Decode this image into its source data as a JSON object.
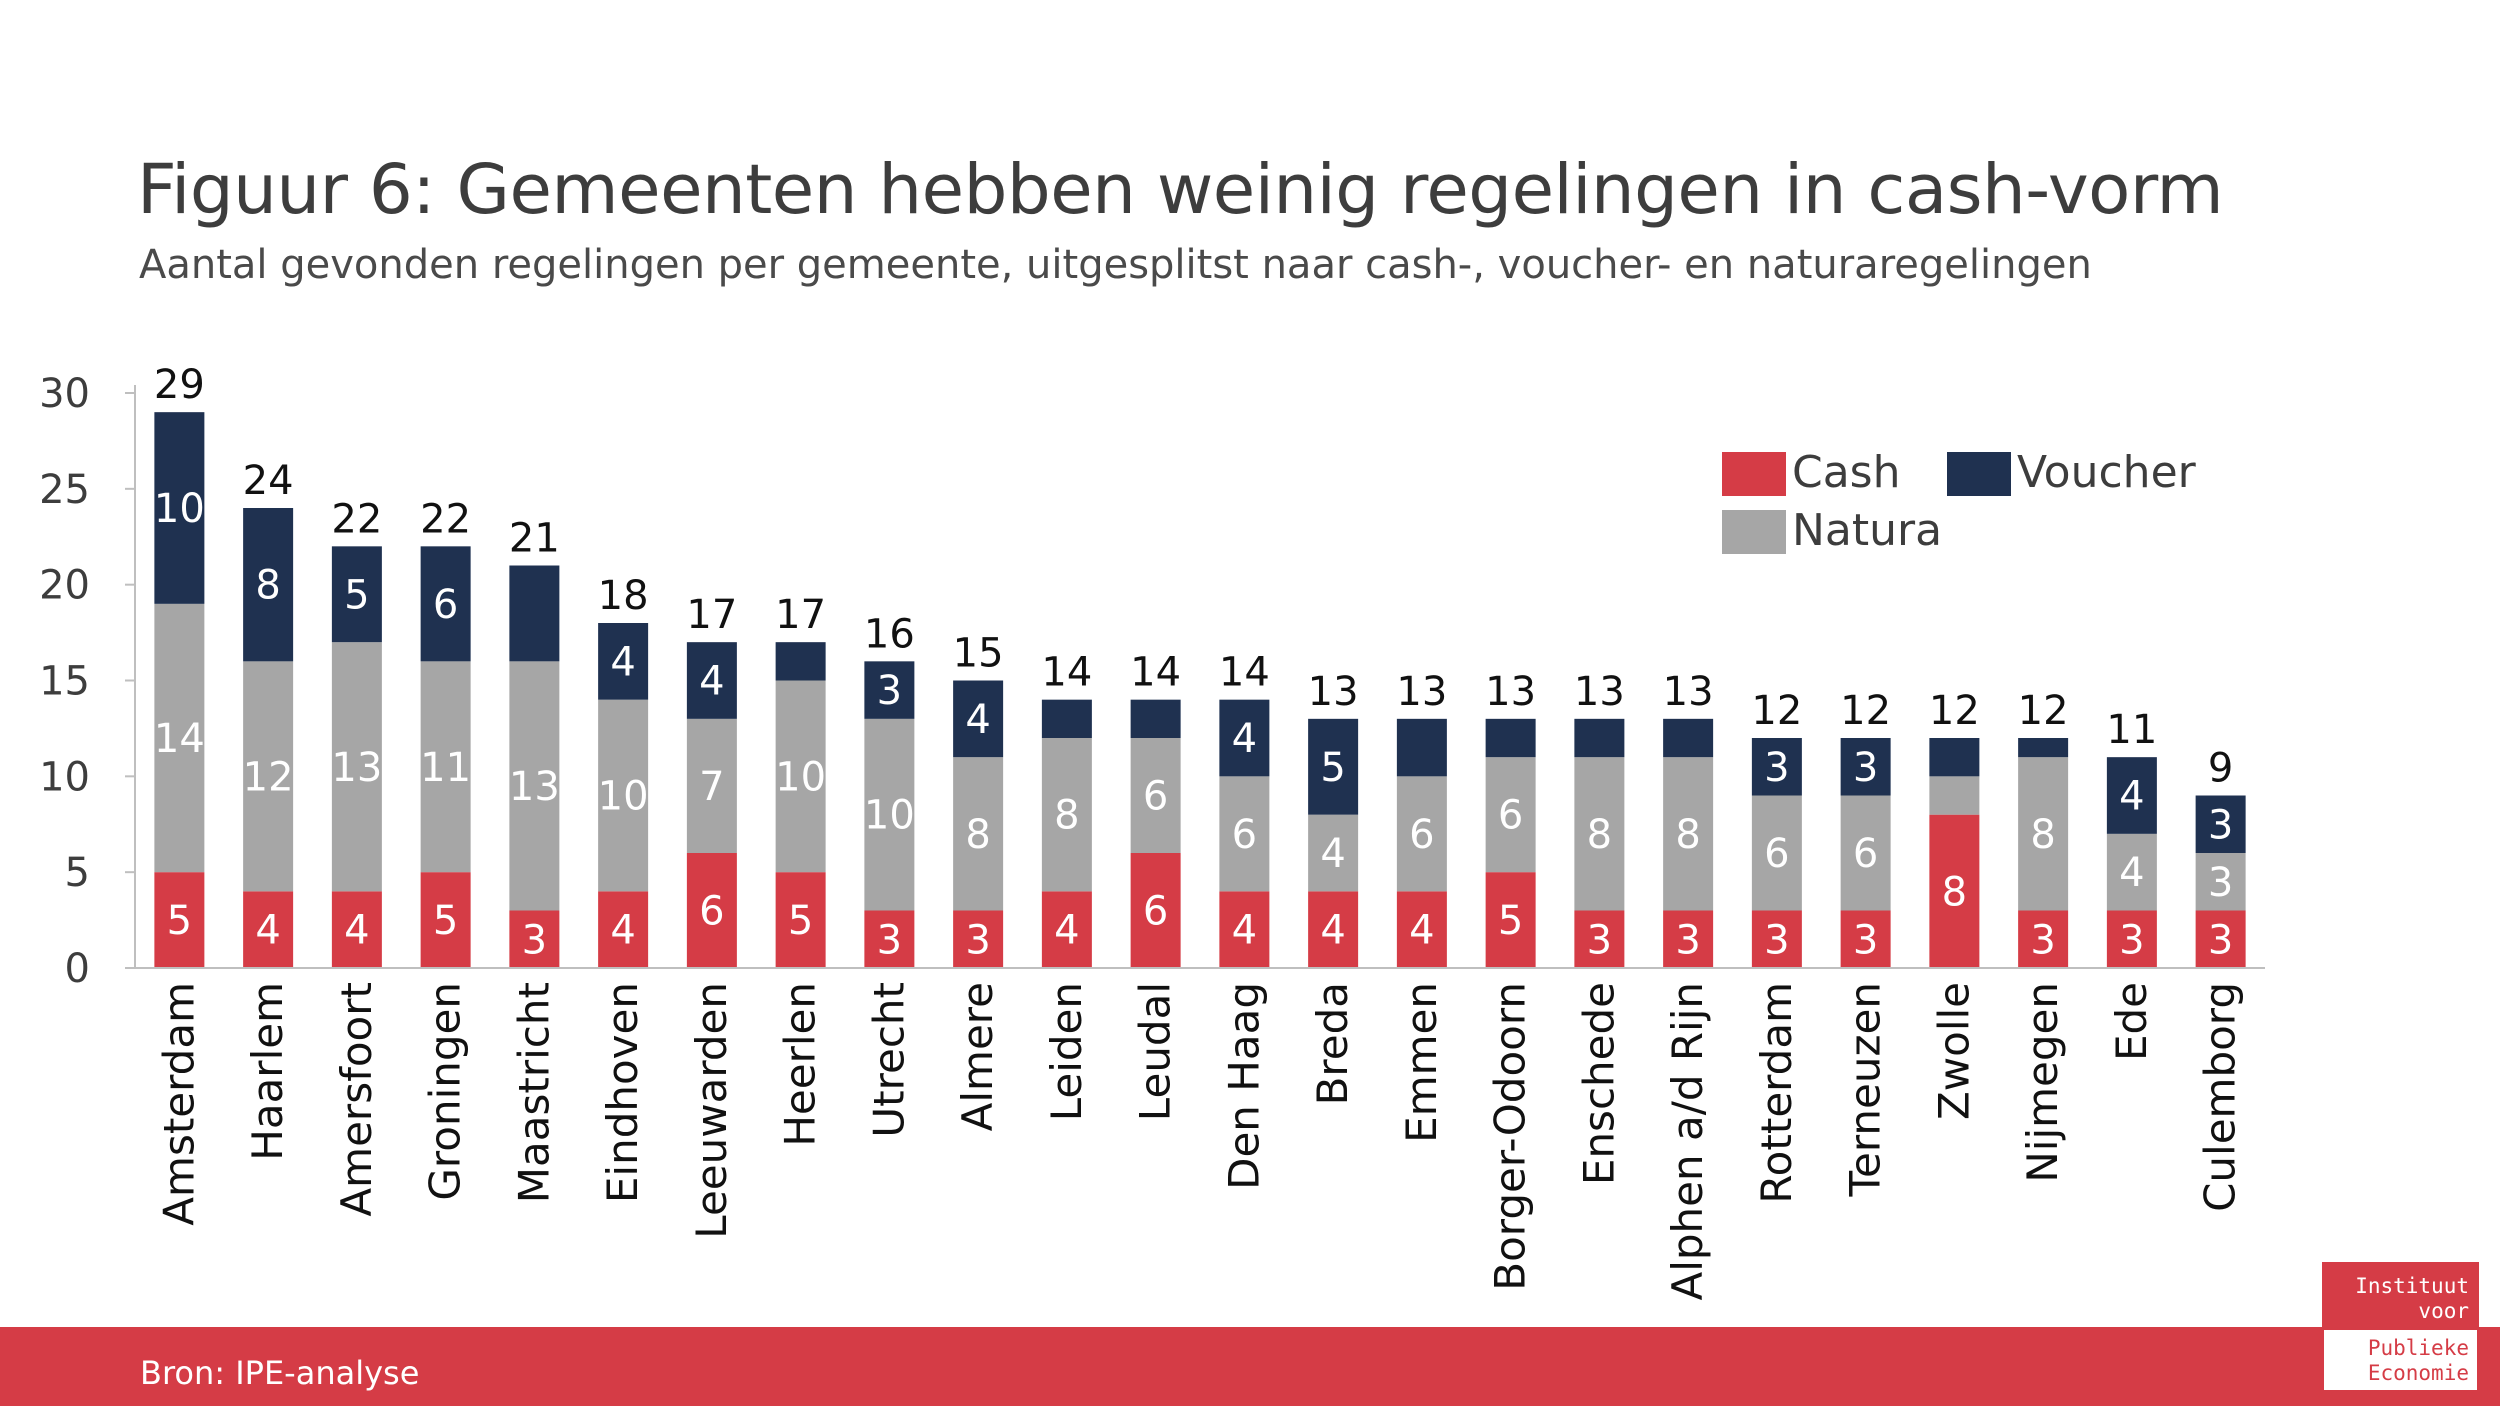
{
  "header": {
    "title": "Figuur 6: Gemeenten hebben weinig regelingen in cash-vorm",
    "subtitle": "Aantal gevonden regelingen per gemeente, uitgesplitst naar cash-, voucher- en naturaregelingen"
  },
  "footer": {
    "source": "Bron: IPE-analyse"
  },
  "logo": {
    "lines_top": [
      "Instituut",
      "voor"
    ],
    "lines_bottom": [
      "Publieke",
      "Economie"
    ]
  },
  "colors": {
    "Cash": "#d53c46",
    "Natura": "#a6a6a6",
    "Voucher": "#1f3150",
    "footer": "#d53c46"
  },
  "chart_data": {
    "type": "bar",
    "stacked": true,
    "title": "Figuur 6: Gemeenten hebben weinig regelingen in cash-vorm",
    "subtitle": "Aantal gevonden regelingen per gemeente, uitgesplitst naar cash-, voucher- en naturaregelingen",
    "xlabel": "",
    "ylabel": "",
    "ylim": [
      0,
      30
    ],
    "yticks": [
      0,
      5,
      10,
      15,
      20,
      25,
      30
    ],
    "grid": false,
    "legend_position": "top-right",
    "categories": [
      "Amsterdam",
      "Haarlem",
      "Amersfoort",
      "Groningen",
      "Maastricht",
      "Eindhoven",
      "Leeuwarden",
      "Heerlen",
      "Utrecht",
      "Almere",
      "Leiden",
      "Leudal",
      "Den Haag",
      "Breda",
      "Emmen",
      "Borger-Odoorn",
      "Enschede",
      "Alphen a/d Rijn",
      "Rotterdam",
      "Terneuzen",
      "Zwolle",
      "Nijmegen",
      "Ede",
      "Culemborg"
    ],
    "series": [
      {
        "name": "Cash",
        "color": "#d53c46",
        "values": [
          5,
          4,
          4,
          5,
          3,
          4,
          6,
          5,
          3,
          3,
          4,
          6,
          4,
          4,
          4,
          5,
          3,
          3,
          3,
          3,
          8,
          3,
          3,
          3
        ],
        "labels": [
          "5",
          "4",
          "4",
          "5",
          "3",
          "4",
          "6",
          "5",
          "3",
          "3",
          "4",
          "6",
          "4",
          "4",
          "4",
          "5",
          "3",
          "3",
          "3",
          "3",
          "8",
          "3",
          "3",
          "3"
        ]
      },
      {
        "name": "Natura",
        "color": "#a6a6a6",
        "values": [
          14,
          12,
          13,
          11,
          13,
          10,
          7,
          10,
          10,
          8,
          8,
          6,
          6,
          4,
          6,
          6,
          8,
          8,
          6,
          6,
          2,
          8,
          4,
          3
        ],
        "labels": [
          "14",
          "12",
          "13",
          "11",
          "13",
          "10",
          "7",
          "10",
          "10",
          "8",
          "8",
          "6",
          "6",
          "4",
          "6",
          "6",
          "8",
          "8",
          "6",
          "6",
          "",
          "8",
          "4",
          "3"
        ]
      },
      {
        "name": "Voucher",
        "color": "#1f3150",
        "values": [
          10,
          8,
          5,
          6,
          5,
          4,
          4,
          2,
          3,
          4,
          2,
          2,
          4,
          5,
          3,
          2,
          2,
          2,
          3,
          3,
          2,
          1,
          4,
          3
        ],
        "labels": [
          "10",
          "8",
          "5",
          "6",
          "",
          "4",
          "4",
          "",
          "3",
          "4",
          "",
          "",
          "4",
          "5",
          "",
          "",
          "",
          "",
          "3",
          "3",
          "",
          "",
          "4",
          "3"
        ]
      }
    ],
    "totals": [
      29,
      24,
      22,
      22,
      21,
      18,
      17,
      17,
      16,
      15,
      14,
      14,
      14,
      13,
      13,
      13,
      13,
      13,
      12,
      12,
      12,
      12,
      11,
      9
    ]
  }
}
